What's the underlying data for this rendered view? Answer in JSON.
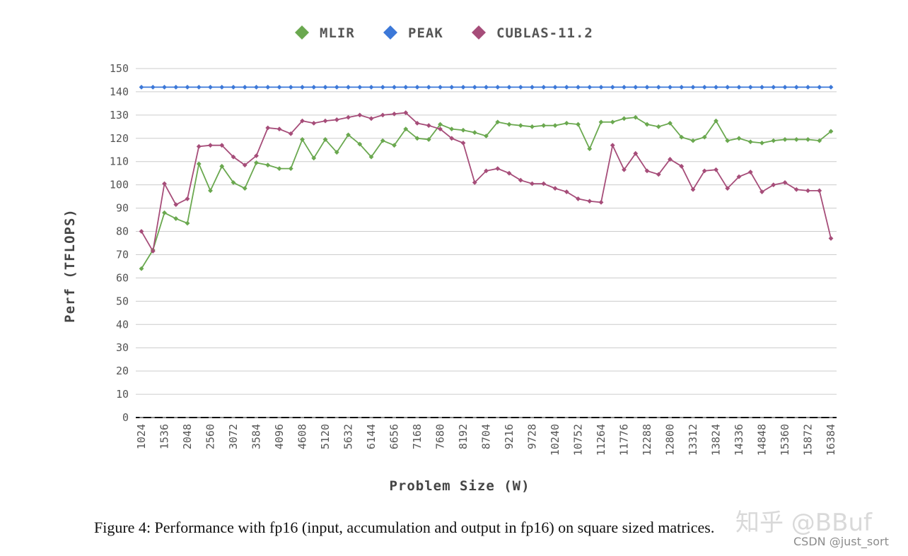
{
  "caption": "Figure 4: Performance with fp16 (input, accumulation and output in fp16) on square sized matrices.",
  "watermark": {
    "main": "知乎 @BBuf",
    "sub": "CSDN @just_sort"
  },
  "chart_data": {
    "type": "line",
    "title": "",
    "xlabel": "Problem Size (W)",
    "ylabel": "Perf (TFLOPS)",
    "ylim": [
      0,
      150
    ],
    "ytick_step": 10,
    "legend_position": "top-center",
    "x": [
      1024,
      1280,
      1536,
      1792,
      2048,
      2304,
      2560,
      2816,
      3072,
      3328,
      3584,
      3840,
      4096,
      4352,
      4608,
      4864,
      5120,
      5376,
      5632,
      5888,
      6144,
      6400,
      6656,
      6912,
      7168,
      7424,
      7680,
      7936,
      8192,
      8448,
      8704,
      8960,
      9216,
      9472,
      9728,
      9984,
      10240,
      10496,
      10752,
      11008,
      11264,
      11520,
      11776,
      12032,
      12288,
      12544,
      12800,
      13056,
      13312,
      13568,
      13824,
      14080,
      14336,
      14592,
      14848,
      15104,
      15360,
      15616,
      15872,
      16128,
      16384
    ],
    "x_tick_labels": [
      "1024",
      "1536",
      "2048",
      "2560",
      "3072",
      "3584",
      "4096",
      "4608",
      "5120",
      "5632",
      "6144",
      "6656",
      "7168",
      "7680",
      "8192",
      "8704",
      "9216",
      "9728",
      "10240",
      "10752",
      "11264",
      "11776",
      "12288",
      "12800",
      "13312",
      "13824",
      "14336",
      "14848",
      "15360",
      "15872",
      "16384"
    ],
    "series": [
      {
        "name": "MLIR",
        "color": "#6aa84f",
        "values": [
          64,
          72,
          88,
          85.5,
          83.5,
          109,
          97.5,
          108,
          101,
          98.5,
          109.5,
          108.5,
          107,
          107,
          119.5,
          111.5,
          119.5,
          114,
          121.5,
          117.5,
          112,
          119,
          117,
          124,
          120,
          119.5,
          126,
          124,
          123.5,
          122.5,
          121,
          127,
          126,
          125.5,
          125,
          125.5,
          125.5,
          126.5,
          126,
          115.5,
          127,
          127,
          128.5,
          129,
          126,
          125,
          126.5,
          120.5,
          119,
          120.5,
          127.5,
          119,
          120,
          118.5,
          118,
          119,
          119.5,
          119.5,
          119.5,
          119,
          123
        ]
      },
      {
        "name": "PEAK",
        "color": "#3c78d8",
        "values": [
          142,
          142,
          142,
          142,
          142,
          142,
          142,
          142,
          142,
          142,
          142,
          142,
          142,
          142,
          142,
          142,
          142,
          142,
          142,
          142,
          142,
          142,
          142,
          142,
          142,
          142,
          142,
          142,
          142,
          142,
          142,
          142,
          142,
          142,
          142,
          142,
          142,
          142,
          142,
          142,
          142,
          142,
          142,
          142,
          142,
          142,
          142,
          142,
          142,
          142,
          142,
          142,
          142,
          142,
          142,
          142,
          142,
          142,
          142,
          142,
          142
        ]
      },
      {
        "name": "CUBLAS-11.2",
        "color": "#a64d79",
        "values": [
          80,
          71.5,
          100.5,
          91.5,
          94,
          116.5,
          117,
          117,
          112,
          108.5,
          112.5,
          124.5,
          124,
          122,
          127.5,
          126.5,
          127.5,
          128,
          129,
          130,
          128.5,
          130,
          130.5,
          131,
          126.5,
          125.5,
          124,
          120,
          118,
          101,
          106,
          107,
          105,
          102,
          100.5,
          100.5,
          98.5,
          97,
          94,
          93,
          92.5,
          117,
          106.5,
          113.5,
          106,
          104.5,
          111,
          108,
          98,
          106,
          106.5,
          98.5,
          103.5,
          105.5,
          97,
          100,
          101,
          98,
          97.5,
          97.5,
          77
        ]
      }
    ]
  }
}
